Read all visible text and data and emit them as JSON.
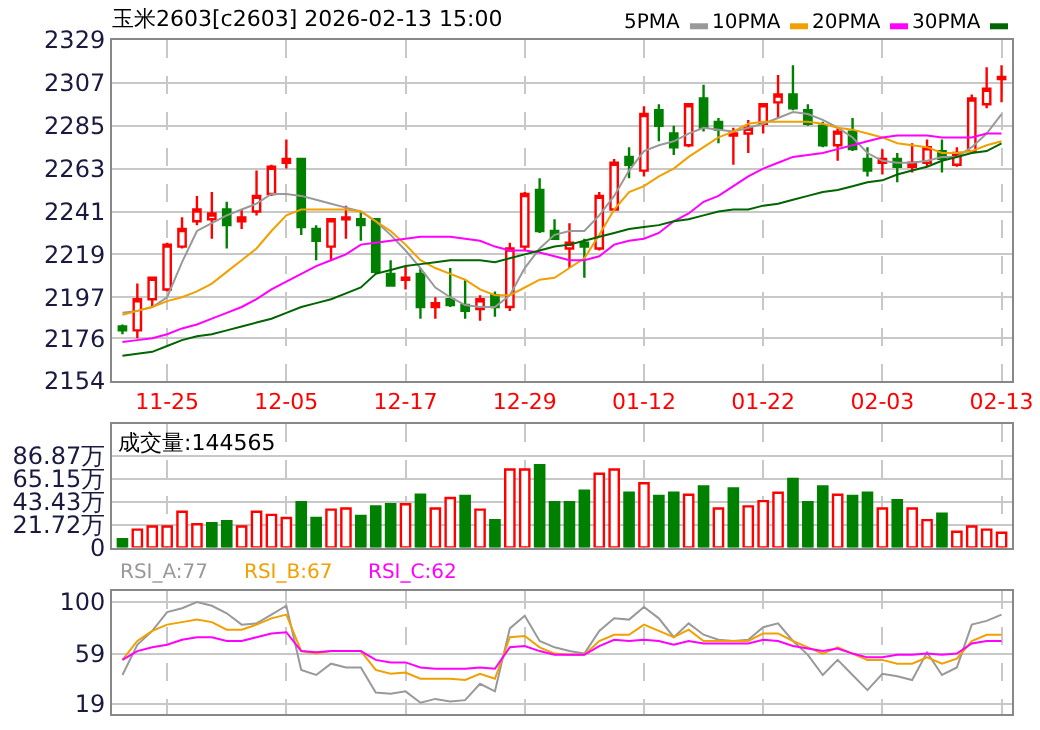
{
  "chart_data": [
    {
      "type": "candlestick",
      "title": "玉米2603[c2603] 2026-02-13 15:00",
      "categories": [
        null,
        null,
        null,
        "11-25",
        null,
        null,
        null,
        null,
        null,
        null,
        null,
        "12-05",
        null,
        null,
        null,
        null,
        null,
        null,
        null,
        "12-17",
        null,
        null,
        null,
        null,
        null,
        null,
        null,
        "12-29",
        null,
        null,
        null,
        null,
        null,
        null,
        null,
        "01-12",
        null,
        null,
        null,
        null,
        null,
        null,
        null,
        "01-22",
        null,
        null,
        null,
        null,
        null,
        null,
        null,
        "02-03",
        null,
        null,
        null,
        null,
        null,
        null,
        null,
        "02-13"
      ],
      "ohlc": [
        [
          2182,
          2183,
          2178,
          2180
        ],
        [
          2180,
          2204,
          2176,
          2196
        ],
        [
          2196,
          2207,
          2192,
          2207
        ],
        [
          2201,
          2225,
          2200,
          2224
        ],
        [
          2223,
          2238,
          2222,
          2232
        ],
        [
          2236,
          2249,
          2234,
          2242
        ],
        [
          2237,
          2251,
          2227,
          2240
        ],
        [
          2242,
          2246,
          2222,
          2234
        ],
        [
          2236,
          2242,
          2232,
          2238
        ],
        [
          2241,
          2262,
          2239,
          2249
        ],
        [
          2250,
          2265,
          2249,
          2264
        ],
        [
          2266,
          2278,
          2263,
          2268
        ],
        [
          2268,
          2268,
          2229,
          2233
        ],
        [
          2232,
          2234,
          2216,
          2226
        ],
        [
          2223,
          2237,
          2216,
          2237
        ],
        [
          2237,
          2244,
          2227,
          2238
        ],
        [
          2237,
          2241,
          2226,
          2234
        ],
        [
          2237,
          2237,
          2209,
          2210
        ],
        [
          2209,
          2216,
          2203,
          2203
        ],
        [
          2206,
          2213,
          2201,
          2207
        ],
        [
          2209,
          2212,
          2186,
          2192
        ],
        [
          2192,
          2197,
          2186,
          2194
        ],
        [
          2196,
          2212,
          2192,
          2193
        ],
        [
          2193,
          2206,
          2186,
          2190
        ],
        [
          2191,
          2198,
          2185,
          2196
        ],
        [
          2198,
          2200,
          2187,
          2192
        ],
        [
          2192,
          2225,
          2190,
          2222
        ],
        [
          2223,
          2251,
          2221,
          2250
        ],
        [
          2252,
          2258,
          2230,
          2231
        ],
        [
          2231,
          2237,
          2227,
          2227
        ],
        [
          2222,
          2235,
          2212,
          2225
        ],
        [
          2225,
          2227,
          2207,
          2223
        ],
        [
          2222,
          2251,
          2221,
          2249
        ],
        [
          2242,
          2268,
          2242,
          2266
        ],
        [
          2269,
          2274,
          2258,
          2265
        ],
        [
          2262,
          2295,
          2259,
          2291
        ],
        [
          2293,
          2296,
          2277,
          2285
        ],
        [
          2281,
          2285,
          2270,
          2274
        ],
        [
          2275,
          2296,
          2274,
          2296
        ],
        [
          2299,
          2306,
          2282,
          2284
        ],
        [
          2287,
          2289,
          2276,
          2283
        ],
        [
          2280,
          2284,
          2265,
          2281
        ],
        [
          2281,
          2288,
          2271,
          2284
        ],
        [
          2286,
          2296,
          2281,
          2296
        ],
        [
          2297,
          2311,
          2289,
          2301
        ],
        [
          2301,
          2316,
          2293,
          2294
        ],
        [
          2293,
          2296,
          2285,
          2286
        ],
        [
          2285,
          2287,
          2274,
          2275
        ],
        [
          2275,
          2284,
          2267,
          2282
        ],
        [
          2282,
          2289,
          2272,
          2273
        ],
        [
          2268,
          2274,
          2259,
          2262
        ],
        [
          2266,
          2273,
          2260,
          2268
        ],
        [
          2268,
          2271,
          2256,
          2264
        ],
        [
          2264,
          2276,
          2261,
          2266
        ],
        [
          2266,
          2278,
          2264,
          2274
        ],
        [
          2272,
          2278,
          2261,
          2268
        ],
        [
          2265,
          2274,
          2264,
          2271
        ],
        [
          2272,
          2301,
          2272,
          2299
        ],
        [
          2296,
          2315,
          2294,
          2304
        ],
        [
          2309,
          2316,
          2297,
          2310
        ]
      ],
      "colors": [
        "#008000",
        "#ff0000",
        "#ff0000",
        "#ff0000",
        "#ff0000",
        "#ff0000",
        "#ff0000",
        "#008000",
        "#ff0000",
        "#ff0000",
        "#ff0000",
        "#ff0000",
        "#008000",
        "#008000",
        "#ff0000",
        "#ff0000",
        "#008000",
        "#008000",
        "#008000",
        "#ff0000",
        "#008000",
        "#ff0000",
        "#008000",
        "#008000",
        "#ff0000",
        "#008000",
        "#ff0000",
        "#ff0000",
        "#008000",
        "#008000",
        "#ff0000",
        "#008000",
        "#ff0000",
        "#ff0000",
        "#008000",
        "#ff0000",
        "#008000",
        "#008000",
        "#ff0000",
        "#008000",
        "#008000",
        "#ff0000",
        "#ff0000",
        "#ff0000",
        "#ff0000",
        "#008000",
        "#008000",
        "#008000",
        "#ff0000",
        "#008000",
        "#008000",
        "#ff0000",
        "#008000",
        "#ff0000",
        "#ff0000",
        "#008000",
        "#ff0000",
        "#ff0000",
        "#ff0000",
        "#ff0000"
      ],
      "series": [
        {
          "name": "5PMA",
          "type": "line",
          "color": "#999999",
          "values": [
            2189,
            2190,
            2192,
            2197,
            2215,
            2231,
            2235,
            2239,
            2242,
            2245,
            2250,
            2250,
            2249,
            2247,
            2245,
            2243,
            2241,
            2236,
            2229,
            2221,
            2212,
            2202,
            2197,
            2193,
            2192,
            2192,
            2198,
            2212,
            2222,
            2229,
            2231,
            2231,
            2239,
            2249,
            2262,
            2272,
            2275,
            2277,
            2281,
            2284,
            2283,
            2282,
            2284,
            2286,
            2289,
            2292,
            2291,
            2288,
            2284,
            2279,
            2271,
            2267,
            2266,
            2266,
            2267,
            2269,
            2269,
            2274,
            2281,
            2291
          ]
        },
        {
          "name": "10PMA",
          "type": "line",
          "color": "#f0a000",
          "values": [
            2188,
            2190,
            2192,
            2195,
            2197,
            2200,
            2204,
            2210,
            2216,
            2222,
            2231,
            2239,
            2242,
            2242,
            2242,
            2242,
            2241,
            2236,
            2231,
            2224,
            2216,
            2212,
            2209,
            2206,
            2201,
            2198,
            2198,
            2202,
            2206,
            2207,
            2212,
            2217,
            2229,
            2242,
            2251,
            2254,
            2259,
            2263,
            2269,
            2274,
            2279,
            2282,
            2286,
            2287,
            2287,
            2287,
            2287,
            2286,
            2284,
            2283,
            2281,
            2279,
            2276,
            2275,
            2274,
            2271,
            2271,
            2272,
            2275,
            2277
          ]
        },
        {
          "name": "20PMA",
          "type": "line",
          "color": "#ff00ff",
          "values": [
            2174,
            2175,
            2176,
            2178,
            2181,
            2183,
            2186,
            2189,
            2192,
            2196,
            2201,
            2205,
            2209,
            2213,
            2216,
            2219,
            2224,
            2225,
            2226,
            2227,
            2228,
            2228,
            2228,
            2227,
            2226,
            2223,
            2221,
            2221,
            2220,
            2218,
            2216,
            2216,
            2218,
            2224,
            2226,
            2227,
            2230,
            2236,
            2240,
            2246,
            2249,
            2254,
            2259,
            2263,
            2266,
            2269,
            2270,
            2271,
            2273,
            2275,
            2277,
            2279,
            2280,
            2280,
            2280,
            2279,
            2279,
            2279,
            2281,
            2281
          ]
        },
        {
          "name": "30PMA",
          "type": "line",
          "color": "#006400",
          "values": [
            2167,
            2168,
            2169,
            2172,
            2175,
            2177,
            2178,
            2180,
            2182,
            2184,
            2186,
            2189,
            2192,
            2194,
            2196,
            2199,
            2202,
            2209,
            2211,
            2213,
            2214,
            2215,
            2216,
            2216,
            2216,
            2215,
            2217,
            2219,
            2221,
            2223,
            2224,
            2226,
            2228,
            2230,
            2232,
            2233,
            2234,
            2236,
            2237,
            2239,
            2241,
            2242,
            2242,
            2244,
            2245,
            2247,
            2249,
            2251,
            2252,
            2254,
            2256,
            2257,
            2260,
            2262,
            2264,
            2267,
            2269,
            2271,
            2272,
            2276
          ]
        }
      ],
      "ylim": [
        2154,
        2329
      ],
      "yticks": [
        2154,
        2176,
        2197,
        2219,
        2241,
        2263,
        2285,
        2307,
        2329
      ],
      "grid": true,
      "legend": "top right"
    },
    {
      "type": "bar",
      "title": "成交量:144565",
      "categories": [
        null,
        null,
        null,
        null,
        null,
        null,
        null,
        null,
        null,
        null,
        null,
        null,
        null,
        null,
        null,
        null,
        null,
        null,
        null,
        null,
        null,
        null,
        null,
        null,
        null,
        null,
        null,
        null,
        null,
        null,
        null,
        null,
        null,
        null,
        null,
        null,
        null,
        null,
        null,
        null,
        null,
        null,
        null,
        null,
        null,
        null,
        null,
        null,
        null,
        null,
        null,
        null,
        null,
        null,
        null,
        null,
        null,
        null,
        null,
        null
      ],
      "values": [
        8,
        17,
        20,
        20,
        34,
        22,
        23,
        25,
        20,
        34,
        31,
        28,
        43,
        28,
        36,
        37,
        30,
        39,
        41,
        41,
        50,
        37,
        47,
        49,
        36,
        26,
        74,
        74,
        78,
        43,
        43,
        54,
        70,
        74,
        52,
        61,
        49,
        52,
        50,
        58,
        37,
        56,
        39,
        44,
        52,
        65,
        43,
        58,
        50,
        49,
        52,
        37,
        45,
        37,
        26,
        32,
        15,
        20,
        17,
        14
      ],
      "colors": [
        "#008000",
        "#ff0000",
        "#ff0000",
        "#ff0000",
        "#ff0000",
        "#ff0000",
        "#008000",
        "#008000",
        "#ff0000",
        "#ff0000",
        "#ff0000",
        "#ff0000",
        "#008000",
        "#008000",
        "#ff0000",
        "#ff0000",
        "#008000",
        "#008000",
        "#008000",
        "#ff0000",
        "#008000",
        "#ff0000",
        "#ff0000",
        "#008000",
        "#ff0000",
        "#008000",
        "#ff0000",
        "#ff0000",
        "#008000",
        "#008000",
        "#008000",
        "#008000",
        "#ff0000",
        "#ff0000",
        "#008000",
        "#ff0000",
        "#008000",
        "#008000",
        "#ff0000",
        "#008000",
        "#ff0000",
        "#008000",
        "#ff0000",
        "#ff0000",
        "#ff0000",
        "#008000",
        "#008000",
        "#008000",
        "#ff0000",
        "#008000",
        "#008000",
        "#ff0000",
        "#008000",
        "#ff0000",
        "#ff0000",
        "#008000",
        "#ff0000",
        "#ff0000",
        "#ff0000",
        "#ff0000"
      ],
      "ylim": [
        0,
        117
      ],
      "yticks": [
        0,
        {
          "value": 21.72,
          "label": "21.72万"
        },
        {
          "value": 43.43,
          "label": "43.43万"
        },
        {
          "value": 65.15,
          "label": "65.15万"
        },
        {
          "value": 86.87,
          "label": "86.87万"
        }
      ],
      "grid": true,
      "tick_labels": "y"
    },
    {
      "type": "line",
      "categories": [
        null,
        null,
        null,
        null,
        null,
        null,
        null,
        null,
        null,
        null,
        null,
        null,
        null,
        null,
        null,
        null,
        null,
        null,
        null,
        null,
        null,
        null,
        null,
        null,
        null,
        null,
        null,
        null,
        null,
        null,
        null,
        null,
        null,
        null,
        null,
        null,
        null,
        null,
        null,
        null,
        null,
        null,
        null,
        null,
        null,
        null,
        null,
        null,
        null,
        null,
        null,
        null,
        null,
        null,
        null,
        null,
        null,
        null,
        null,
        null
      ],
      "series": [
        {
          "name": "RSI_A:77",
          "color": "#999999",
          "values": [
            42,
            66,
            77,
            92,
            95,
            100,
            97,
            91,
            82,
            83,
            90,
            97,
            46,
            42,
            51,
            48,
            48,
            28,
            27,
            29,
            20,
            23,
            21,
            22,
            35,
            29,
            79,
            89,
            69,
            64,
            61,
            59,
            77,
            87,
            86,
            96,
            87,
            72,
            83,
            74,
            70,
            69,
            70,
            80,
            83,
            69,
            58,
            42,
            54,
            42,
            30,
            43,
            41,
            38,
            60,
            42,
            48,
            82,
            85,
            90
          ]
        },
        {
          "name": "RSI_B:67",
          "color": "#f0a000",
          "values": [
            54,
            69,
            77,
            82,
            84,
            86,
            84,
            78,
            78,
            82,
            87,
            90,
            61,
            59,
            61,
            61,
            61,
            46,
            43,
            44,
            39,
            39,
            39,
            38,
            43,
            39,
            72,
            73,
            64,
            59,
            58,
            58,
            69,
            74,
            74,
            82,
            77,
            72,
            78,
            69,
            69,
            69,
            69,
            75,
            75,
            69,
            64,
            59,
            64,
            59,
            54,
            54,
            51,
            51,
            56,
            51,
            55,
            69,
            74,
            74
          ]
        },
        {
          "name": "RSI_C:62",
          "color": "#ff00ff",
          "values": [
            54,
            61,
            64,
            66,
            70,
            72,
            72,
            69,
            69,
            72,
            75,
            76,
            61,
            60,
            61,
            61,
            61,
            54,
            52,
            52,
            48,
            47,
            47,
            47,
            48,
            47,
            64,
            65,
            61,
            58,
            58,
            58,
            65,
            70,
            69,
            70,
            69,
            66,
            69,
            67,
            67,
            67,
            67,
            70,
            69,
            65,
            63,
            61,
            63,
            59,
            56,
            56,
            58,
            58,
            59,
            58,
            59,
            67,
            69,
            69
          ]
        }
      ],
      "ylim": [
        11,
        109
      ],
      "yticks": [
        19,
        59,
        100
      ],
      "grid": true,
      "legend": "top left",
      "tick_labels": "y"
    }
  ]
}
